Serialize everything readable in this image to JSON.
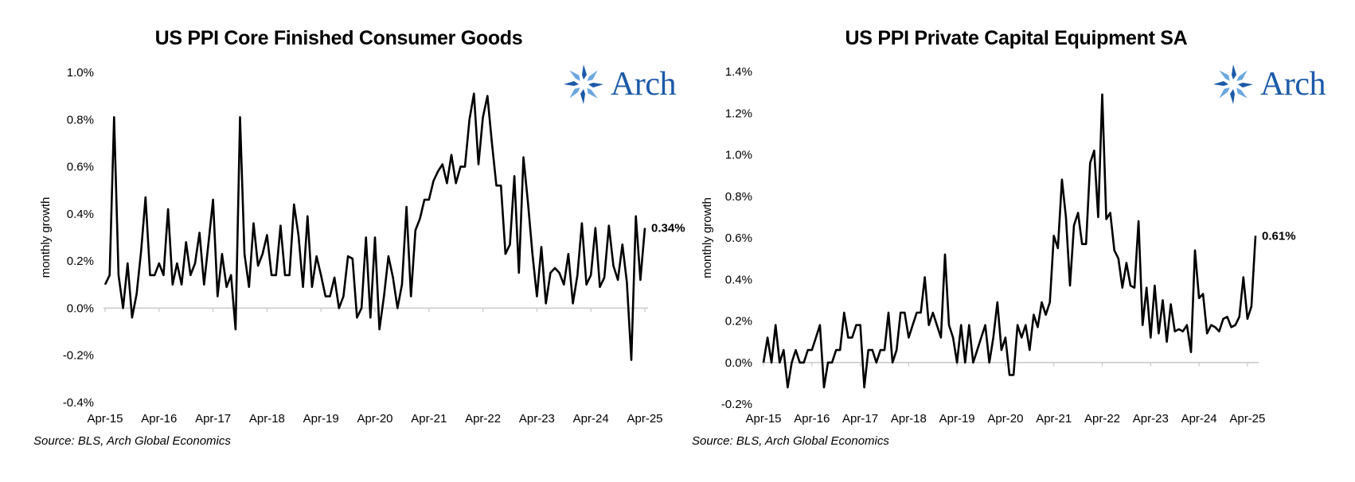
{
  "brand": {
    "logo_text": "Arch",
    "color": "#1b5aa8"
  },
  "charts": [
    {
      "title": "US PPI Core Finished Consumer Goods",
      "source": "Source: BLS, Arch Global Economics",
      "ylabel": "monthly growth",
      "end_label": "0.34%",
      "yticks": [
        "1.0%",
        "0.8%",
        "0.6%",
        "0.4%",
        "0.2%",
        "0.0%",
        "-0.2%",
        "-0.4%"
      ],
      "xticks": [
        "Apr-15",
        "Apr-16",
        "Apr-17",
        "Apr-18",
        "Apr-19",
        "Apr-20",
        "Apr-21",
        "Apr-22",
        "Apr-23",
        "Apr-24",
        "Apr-25"
      ]
    },
    {
      "title": "US PPI Private Capital Equipment SA",
      "source": "Source: BLS, Arch Global Economics",
      "ylabel": "monthly growth",
      "end_label": "0.61%",
      "yticks": [
        "1.4%",
        "1.2%",
        "1.0%",
        "0.8%",
        "0.6%",
        "0.4%",
        "0.2%",
        "0.0%",
        "-0.2%"
      ],
      "xticks": [
        "Apr-15",
        "Apr-16",
        "Apr-17",
        "Apr-18",
        "Apr-19",
        "Apr-20",
        "Apr-21",
        "Apr-22",
        "Apr-23",
        "Apr-24",
        "Apr-25"
      ]
    }
  ],
  "chart_data": [
    {
      "type": "line",
      "title": "US PPI Core Finished Consumer Goods",
      "ylabel": "monthly growth",
      "ylim": [
        -0.4,
        1.0
      ],
      "y_unit": "%",
      "grid": false,
      "x_start": "Apr-15",
      "x_end": "Apr-25",
      "x_frequency": "monthly",
      "end_label": "0.34%",
      "series": [
        {
          "values": [
            0.1,
            0.14,
            0.81,
            0.14,
            0.0,
            0.19,
            -0.04,
            0.06,
            0.24,
            0.47,
            0.14,
            0.14,
            0.19,
            0.14,
            0.42,
            0.1,
            0.19,
            0.1,
            0.28,
            0.14,
            0.19,
            0.32,
            0.1,
            0.28,
            0.46,
            0.05,
            0.23,
            0.09,
            0.14,
            -0.09,
            0.81,
            0.23,
            0.09,
            0.36,
            0.18,
            0.23,
            0.31,
            0.14,
            0.14,
            0.35,
            0.14,
            0.14,
            0.44,
            0.31,
            0.09,
            0.39,
            0.09,
            0.22,
            0.14,
            0.05,
            0.05,
            0.13,
            0.0,
            0.05,
            0.22,
            0.21,
            -0.04,
            0.0,
            0.3,
            -0.04,
            0.3,
            -0.09,
            0.05,
            0.22,
            0.13,
            0.0,
            0.1,
            0.43,
            0.05,
            0.33,
            0.38,
            0.46,
            0.46,
            0.54,
            0.58,
            0.61,
            0.53,
            0.65,
            0.53,
            0.6,
            0.6,
            0.8,
            0.91,
            0.61,
            0.81,
            0.9,
            0.7,
            0.52,
            0.52,
            0.23,
            0.27,
            0.56,
            0.15,
            0.64,
            0.45,
            0.23,
            0.05,
            0.26,
            0.02,
            0.15,
            0.17,
            0.15,
            0.1,
            0.23,
            0.02,
            0.14,
            0.36,
            0.1,
            0.14,
            0.34,
            0.09,
            0.13,
            0.35,
            0.18,
            0.12,
            0.27,
            0.11,
            -0.22,
            0.39,
            0.12,
            0.34
          ]
        }
      ]
    },
    {
      "type": "line",
      "title": "US PPI Private Capital Equipment SA",
      "ylabel": "monthly growth",
      "ylim": [
        -0.2,
        1.4
      ],
      "y_unit": "%",
      "grid": false,
      "x_start": "Apr-15",
      "x_end": "Apr-25",
      "x_frequency": "monthly",
      "end_label": "0.61%",
      "series": [
        {
          "values": [
            0.0,
            0.12,
            0.0,
            0.18,
            0.0,
            0.06,
            -0.12,
            0.0,
            0.06,
            0.0,
            0.0,
            0.06,
            0.06,
            0.12,
            0.18,
            -0.12,
            0.0,
            0.0,
            0.06,
            0.06,
            0.24,
            0.12,
            0.12,
            0.18,
            0.18,
            -0.12,
            0.06,
            0.06,
            0.0,
            0.06,
            0.06,
            0.24,
            0.0,
            0.06,
            0.24,
            0.24,
            0.12,
            0.18,
            0.24,
            0.24,
            0.41,
            0.18,
            0.24,
            0.18,
            0.12,
            0.52,
            0.18,
            0.12,
            0.0,
            0.18,
            0.0,
            0.18,
            0.0,
            0.06,
            0.12,
            0.18,
            0.0,
            0.12,
            0.29,
            0.06,
            0.12,
            -0.06,
            -0.06,
            0.18,
            0.12,
            0.18,
            0.06,
            0.23,
            0.17,
            0.29,
            0.23,
            0.29,
            0.61,
            0.55,
            0.88,
            0.7,
            0.37,
            0.66,
            0.72,
            0.57,
            0.57,
            0.96,
            1.02,
            0.7,
            1.29,
            0.69,
            0.72,
            0.54,
            0.5,
            0.36,
            0.48,
            0.37,
            0.36,
            0.68,
            0.18,
            0.36,
            0.12,
            0.37,
            0.14,
            0.3,
            0.1,
            0.28,
            0.15,
            0.16,
            0.15,
            0.18,
            0.05,
            0.54,
            0.31,
            0.33,
            0.14,
            0.18,
            0.17,
            0.15,
            0.21,
            0.22,
            0.17,
            0.18,
            0.22,
            0.41,
            0.21,
            0.27,
            0.61
          ]
        }
      ]
    }
  ]
}
